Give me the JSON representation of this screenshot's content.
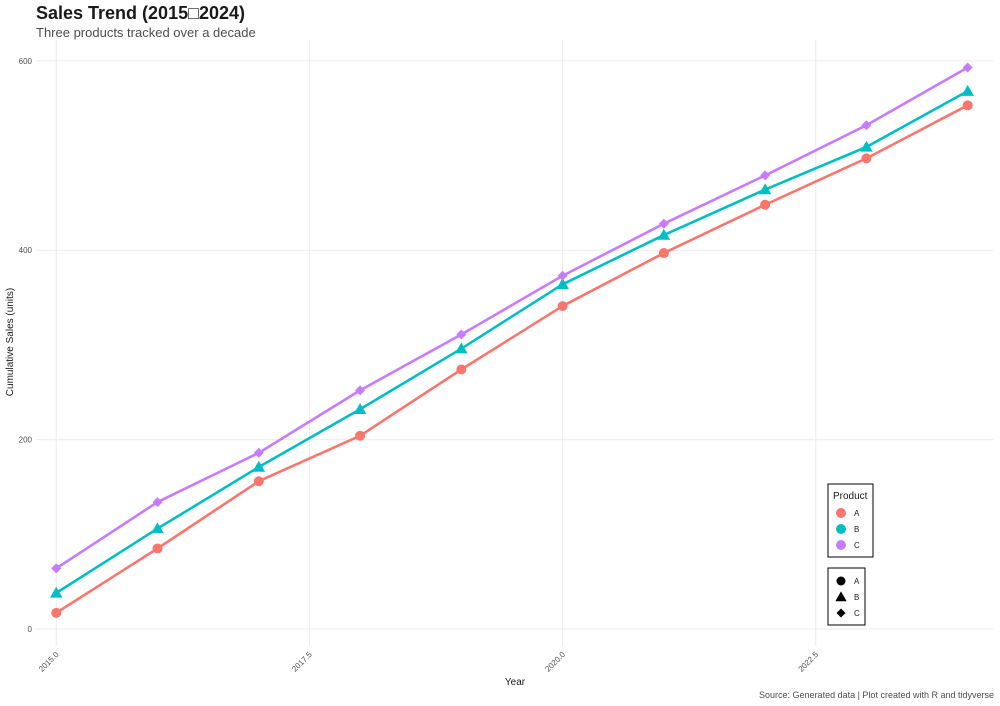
{
  "chart_data": {
    "type": "line",
    "title": "Sales Trend (2015□2024)",
    "subtitle": "Three products tracked over a decade",
    "caption": "Source: Generated data | Plot created with R and tidyverse",
    "xlabel": "Year",
    "ylabel": "Cumulative Sales (units)",
    "xlim": [
      2014.8,
      2024.25
    ],
    "ylim": [
      -18,
      622
    ],
    "x_ticks": [
      2015.0,
      2017.5,
      2020.0,
      2022.5
    ],
    "x_tick_labels": [
      "2015.0",
      "2017.5",
      "2020.0",
      "2022.5"
    ],
    "y_ticks": [
      0,
      200,
      400,
      600
    ],
    "y_tick_labels": [
      "0",
      "200",
      "400",
      "600"
    ],
    "grid": true,
    "legend_position": "bottom-right",
    "color_legend": {
      "title": "Product",
      "entries": [
        {
          "label": "A",
          "color": "#F8766D"
        },
        {
          "label": "B",
          "color": "#00BFC4"
        },
        {
          "label": "C",
          "color": "#C77CFF"
        }
      ]
    },
    "shape_legend": {
      "entries": [
        {
          "label": "A",
          "shape": "circle"
        },
        {
          "label": "B",
          "shape": "triangle"
        },
        {
          "label": "C",
          "shape": "diamond"
        }
      ]
    },
    "x": [
      2015,
      2016,
      2017,
      2018,
      2019,
      2020,
      2021,
      2022,
      2023,
      2024
    ],
    "series": [
      {
        "name": "A",
        "color": "#F8766D",
        "shape": "circle",
        "values": [
          17,
          85,
          156,
          204,
          274,
          341,
          397,
          448,
          497,
          553
        ]
      },
      {
        "name": "B",
        "color": "#00BFC4",
        "shape": "triangle",
        "values": [
          38,
          106,
          171,
          232,
          296,
          364,
          416,
          464,
          509,
          568
        ]
      },
      {
        "name": "C",
        "color": "#C77CFF",
        "shape": "diamond",
        "values": [
          64,
          134,
          186,
          252,
          311,
          373,
          428,
          479,
          532,
          593
        ]
      }
    ]
  }
}
